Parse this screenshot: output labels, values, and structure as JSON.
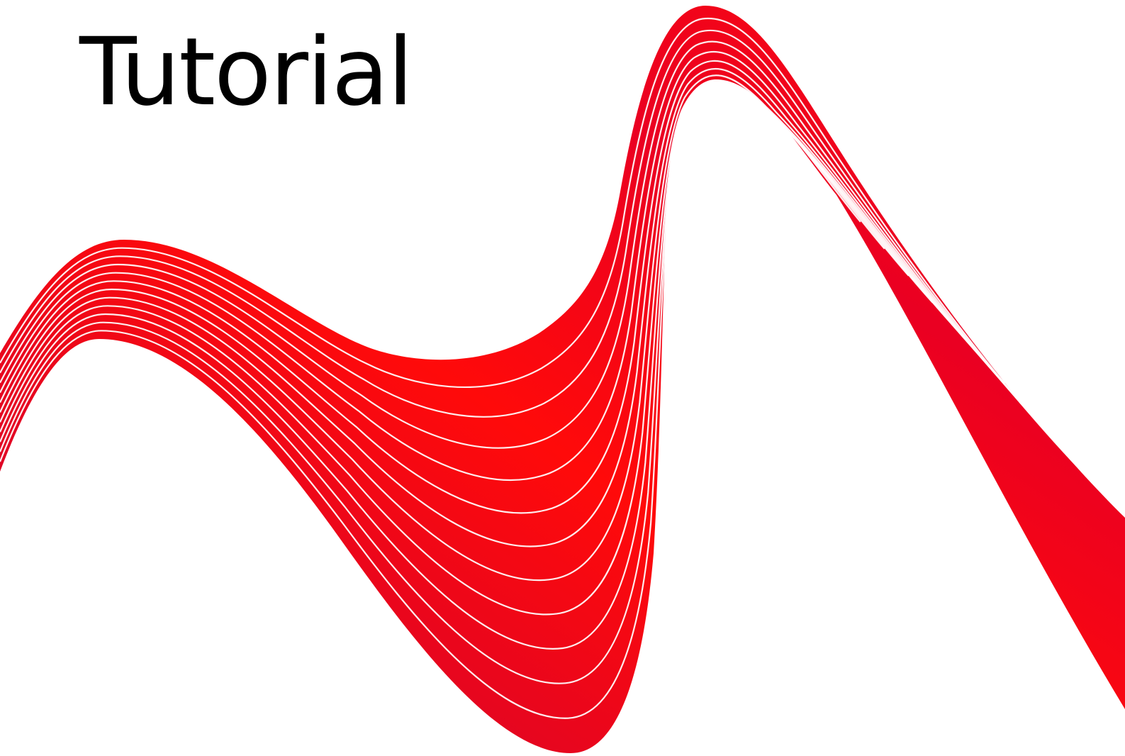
{
  "title": "Tutorial",
  "graphic": {
    "name": "red-wave-ribbon",
    "strand_count": 12,
    "colors": {
      "ribbon_light": "#ff0a0a",
      "ribbon_mid": "#ea0022",
      "ribbon_dark": "#c90038",
      "stripe": "#ffffff",
      "background": "#ffffff",
      "text": "#000000"
    }
  }
}
